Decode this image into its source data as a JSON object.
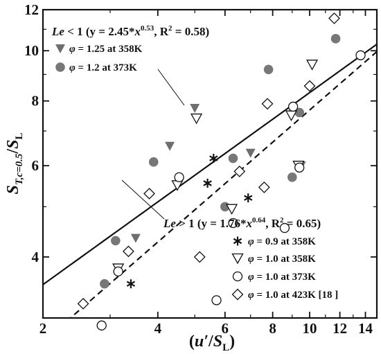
{
  "chart_data": {
    "type": "scatter",
    "x_scale": "log",
    "y_scale": "log",
    "xlim": [
      2,
      15
    ],
    "ylim": [
      3.05,
      12
    ],
    "x_ticks": [
      2,
      4,
      6,
      8,
      10,
      12,
      14
    ],
    "y_ticks": [
      4,
      6,
      8,
      10,
      12
    ],
    "xlabel": "(u′/SL)",
    "ylabel": "ST,c=0.5/SL",
    "grid": false,
    "series": [
      {
        "name": "φ = 1.25 at 358K",
        "marker": "triangle-down-filled",
        "color": "#6e6e6e",
        "x": [
          3.5,
          4.3,
          5.0,
          7.0,
          9.5
        ],
        "y": [
          4.35,
          6.55,
          7.75,
          6.35,
          6.0
        ]
      },
      {
        "name": "φ = 1.2 at 373K",
        "marker": "circle-filled",
        "color": "#777777",
        "x": [
          2.9,
          3.1,
          3.9,
          6.3,
          6.0,
          7.8,
          9.0,
          9.4,
          11.7
        ],
        "y": [
          3.55,
          4.3,
          6.1,
          6.2,
          5.0,
          9.2,
          5.7,
          7.6,
          10.55
        ]
      },
      {
        "name": "φ = 0.9 at 358K",
        "marker": "asterisk",
        "color": "#111111",
        "x": [
          3.4,
          5.6,
          5.4,
          6.9
        ],
        "y": [
          3.55,
          6.2,
          5.55,
          5.2
        ]
      },
      {
        "name": "φ = 1.0 at 358K",
        "marker": "triangle-down-open",
        "color": "#111111",
        "x": [
          3.15,
          4.5,
          5.05,
          6.25,
          8.95,
          9.35,
          10.15
        ],
        "y": [
          3.8,
          5.5,
          7.4,
          4.95,
          7.5,
          6.0,
          9.4
        ]
      },
      {
        "name": "φ = 1.0 at 373K",
        "marker": "circle-open",
        "color": "#111111",
        "x": [
          2.85,
          3.15,
          4.55,
          5.7,
          6.3,
          8.6,
          9.05,
          9.4,
          13.6
        ],
        "y": [
          2.95,
          3.75,
          5.7,
          3.3,
          4.65,
          4.55,
          7.8,
          5.95,
          9.8
        ]
      },
      {
        "name": "φ = 1.0 at 423K [18 ]",
        "marker": "diamond-open",
        "color": "#111111",
        "x": [
          2.55,
          3.35,
          3.8,
          5.15,
          6.55,
          7.6,
          7.75,
          10.0,
          11.6
        ],
        "y": [
          3.25,
          4.1,
          5.3,
          4.0,
          5.85,
          5.45,
          7.9,
          8.55,
          11.55
        ]
      }
    ],
    "fits": [
      {
        "label": "Le < 1",
        "equation": "(y = 2.45*x^0.53, R² = 0.58)",
        "a": 2.45,
        "b": 0.53,
        "style": "solid"
      },
      {
        "label": "Le > 1",
        "equation": "(y = 1.76*x^0.64, R² = 0.65)",
        "a": 1.76,
        "b": 0.64,
        "style": "dashed"
      }
    ]
  }
}
